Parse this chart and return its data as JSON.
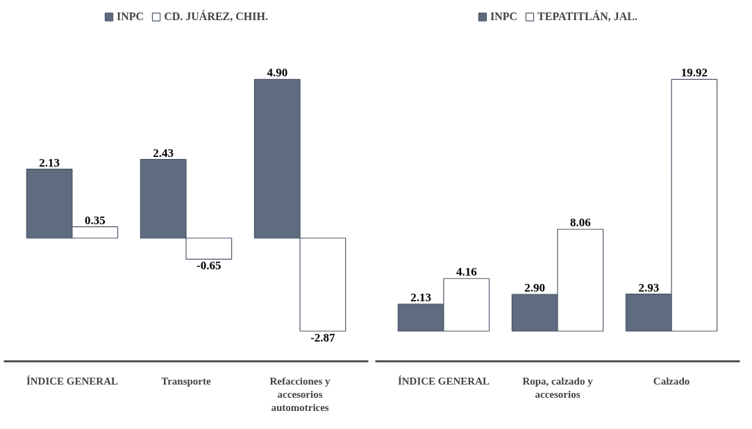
{
  "chart_data": [
    {
      "type": "bar",
      "categories": [
        "ÍNDICE GENERAL",
        "Transporte",
        "Refacciones y accesorios automotrices"
      ],
      "series": [
        {
          "name": "INPC",
          "color": "#5f6b7e",
          "values": [
            2.13,
            2.43,
            4.9
          ],
          "value_labels": [
            "2.13",
            "2.43",
            "4.90"
          ]
        },
        {
          "name": "CD. JUÁREZ, CHIH.",
          "color": "#ffffff",
          "values": [
            0.35,
            -0.65,
            -2.87
          ],
          "value_labels": [
            "0.35",
            "-0.65",
            "-2.87"
          ]
        }
      ],
      "legend": "top"
    },
    {
      "type": "bar",
      "categories": [
        "ÍNDICE GENERAL",
        "Ropa, calzado y accesorios",
        "Calzado"
      ],
      "series": [
        {
          "name": "INPC",
          "color": "#5f6b7e",
          "values": [
            2.13,
            2.9,
            2.93
          ],
          "value_labels": [
            "2.13",
            "2.90",
            "2.93"
          ]
        },
        {
          "name": "TEPATITLÁN, JAL.",
          "color": "#ffffff",
          "values": [
            4.16,
            8.06,
            19.92
          ],
          "value_labels": [
            "4.16",
            "8.06",
            "19.92"
          ]
        }
      ],
      "legend": "top"
    }
  ]
}
